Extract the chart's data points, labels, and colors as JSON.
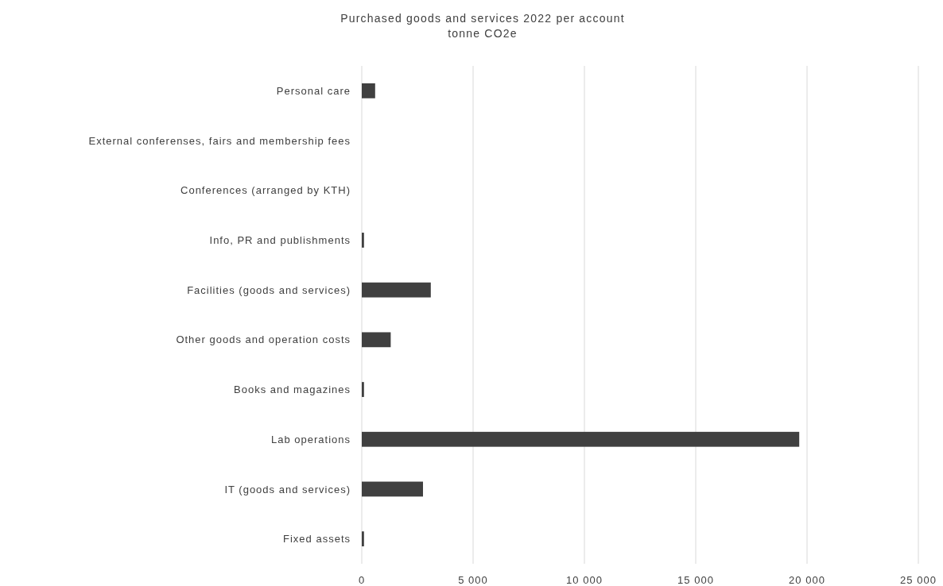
{
  "chart_data": {
    "type": "bar",
    "orientation": "horizontal",
    "title": "Purchased goods and services 2022 per account",
    "subtitle": "tonne CO2e",
    "categories": [
      "Personal care",
      "External conferenses, fairs and membership fees",
      "Conferences (arranged by KTH)",
      "Info, PR and publishments",
      "Facilities (goods and services)",
      "Other goods and operation costs",
      "Books and magazines",
      "Lab operations",
      "IT (goods and services)",
      "Fixed assets"
    ],
    "values": [
      600,
      0,
      0,
      100,
      3100,
      1300,
      100,
      19650,
      2750,
      100
    ],
    "color": "#404040",
    "xlim": [
      0,
      25000
    ],
    "xticks": [
      0,
      {
        "value": 5000,
        "label": "5 000"
      },
      {
        "value": 10000,
        "label": "10 000"
      },
      {
        "value": 15000,
        "label": "15 000"
      },
      {
        "value": 20000,
        "label": "20 000"
      },
      {
        "value": 25000,
        "label": "25 000"
      }
    ],
    "grid": "x"
  }
}
